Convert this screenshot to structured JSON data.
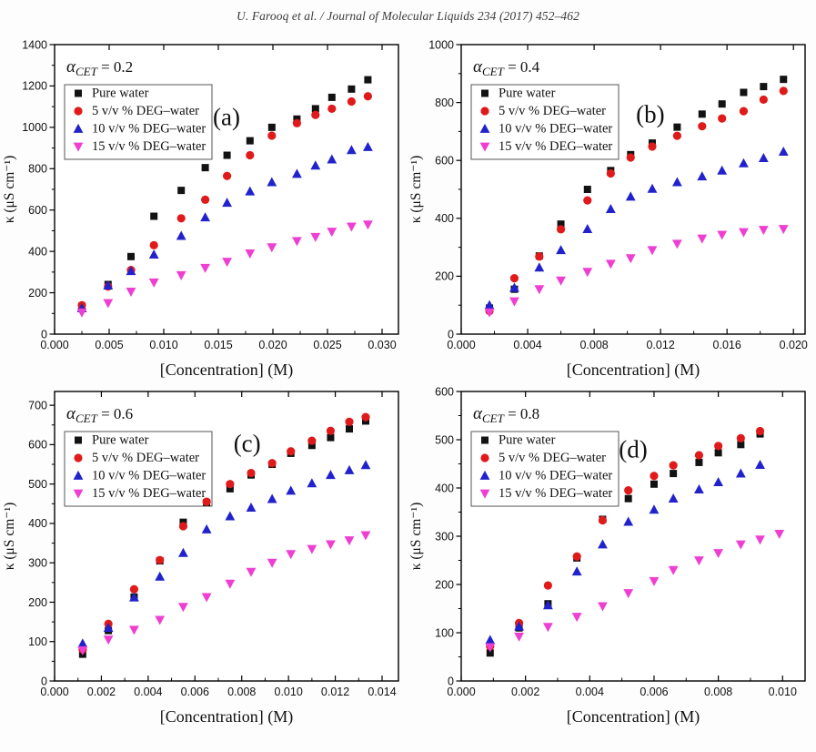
{
  "page": {
    "header": "U. Farooq et al. / Journal of Molecular Liquids 234 (2017) 452–462"
  },
  "chart_data": [
    {
      "type": "scatter",
      "panel_letter": "(a)",
      "title": {
        "symbol": "α",
        "sub": "CET",
        "rest": " = 0.2"
      },
      "xlabel": "[Concentration] (M)",
      "ylabel": "κ (μS cm⁻¹)",
      "xlim": [
        0,
        0.0315
      ],
      "ylim": [
        0,
        1400
      ],
      "xticks": [
        "0.000",
        "0.005",
        "0.010",
        "0.015",
        "0.020",
        "0.025",
        "0.030"
      ],
      "yticks": [
        "0",
        "200",
        "400",
        "600",
        "800",
        "1000",
        "1200",
        "1400"
      ],
      "legend_position": "upper-left",
      "grid": false,
      "letter_frac": [
        0.5,
        0.25
      ],
      "series": [
        {
          "name": "Pure water",
          "marker": "square",
          "color": "#121212",
          "x": [
            0.0025,
            0.0049,
            0.007,
            0.0091,
            0.0116,
            0.0138,
            0.0158,
            0.0179,
            0.0199,
            0.0222,
            0.0239,
            0.0254,
            0.0272,
            0.0287
          ],
          "y": [
            135,
            240,
            375,
            570,
            695,
            805,
            865,
            935,
            1000,
            1040,
            1090,
            1145,
            1185,
            1230
          ]
        },
        {
          "name": "5 v/v % DEG–water",
          "marker": "circle",
          "color": "#e01a1a",
          "x": [
            0.0025,
            0.0049,
            0.007,
            0.0091,
            0.0116,
            0.0138,
            0.0158,
            0.0179,
            0.0199,
            0.0222,
            0.0239,
            0.0254,
            0.0272,
            0.0287
          ],
          "y": [
            140,
            230,
            310,
            430,
            560,
            650,
            765,
            865,
            960,
            1020,
            1060,
            1090,
            1125,
            1150
          ]
        },
        {
          "name": "10 v/v % DEG–water",
          "marker": "triangle-up",
          "color": "#2222cc",
          "x": [
            0.0025,
            0.0049,
            0.007,
            0.0091,
            0.0116,
            0.0138,
            0.0158,
            0.0179,
            0.0199,
            0.0222,
            0.0239,
            0.0254,
            0.0272,
            0.0287
          ],
          "y": [
            125,
            235,
            305,
            385,
            475,
            565,
            635,
            690,
            735,
            775,
            815,
            845,
            890,
            905
          ]
        },
        {
          "name": "15 v/v % DEG–water",
          "marker": "triangle-down",
          "color": "#ee3fd2",
          "x": [
            0.0025,
            0.0049,
            0.007,
            0.0091,
            0.0116,
            0.0138,
            0.0158,
            0.0179,
            0.0199,
            0.0222,
            0.0239,
            0.0254,
            0.0272,
            0.0287
          ],
          "y": [
            105,
            150,
            205,
            250,
            285,
            320,
            350,
            390,
            420,
            450,
            470,
            495,
            520,
            530
          ]
        }
      ]
    },
    {
      "type": "scatter",
      "panel_letter": "(b)",
      "title": {
        "symbol": "α",
        "sub": "CET",
        "rest": " = 0.4"
      },
      "xlabel": "[Concentration] (M)",
      "ylabel": "κ (μS cm⁻¹)",
      "xlim": [
        0,
        0.0207
      ],
      "ylim": [
        0,
        1000
      ],
      "xticks": [
        "0.000",
        "0.004",
        "0.008",
        "0.012",
        "0.016",
        "0.020"
      ],
      "yticks": [
        "0",
        "200",
        "400",
        "600",
        "800",
        "1000"
      ],
      "legend_position": "upper-left",
      "grid": false,
      "letter_frac": [
        0.55,
        0.24
      ],
      "series": [
        {
          "name": "Pure water",
          "marker": "square",
          "color": "#121212",
          "x": [
            0.0017,
            0.0032,
            0.0047,
            0.006,
            0.0076,
            0.009,
            0.0102,
            0.0115,
            0.013,
            0.0145,
            0.0157,
            0.017,
            0.0182,
            0.0194
          ],
          "y": [
            90,
            155,
            270,
            380,
            500,
            565,
            620,
            660,
            715,
            760,
            795,
            835,
            855,
            880
          ]
        },
        {
          "name": "5 v/v % DEG–water",
          "marker": "circle",
          "color": "#e01a1a",
          "x": [
            0.0017,
            0.0032,
            0.0047,
            0.006,
            0.0076,
            0.009,
            0.0102,
            0.0115,
            0.013,
            0.0145,
            0.0157,
            0.017,
            0.0182,
            0.0194
          ],
          "y": [
            80,
            193,
            268,
            362,
            462,
            555,
            610,
            648,
            685,
            718,
            745,
            770,
            810,
            840
          ]
        },
        {
          "name": "10 v/v % DEG–water",
          "marker": "triangle-up",
          "color": "#2222cc",
          "x": [
            0.0017,
            0.0032,
            0.0047,
            0.006,
            0.0076,
            0.009,
            0.0102,
            0.0115,
            0.013,
            0.0145,
            0.0157,
            0.017,
            0.0182,
            0.0194
          ],
          "y": [
            100,
            160,
            230,
            290,
            363,
            432,
            475,
            502,
            525,
            545,
            565,
            590,
            608,
            630
          ]
        },
        {
          "name": "15 v/v % DEG–water",
          "marker": "triangle-down",
          "color": "#ee3fd2",
          "x": [
            0.0017,
            0.0032,
            0.0047,
            0.006,
            0.0076,
            0.009,
            0.0102,
            0.0115,
            0.013,
            0.0145,
            0.0157,
            0.017,
            0.0182,
            0.0194
          ],
          "y": [
            75,
            113,
            155,
            185,
            215,
            243,
            262,
            290,
            312,
            330,
            343,
            352,
            360,
            363
          ]
        }
      ]
    },
    {
      "type": "scatter",
      "panel_letter": "(c)",
      "title": {
        "symbol": "α",
        "sub": "CET",
        "rest": " = 0.6"
      },
      "xlabel": "[Concentration] (M)",
      "ylabel": "κ (μS cm⁻¹)",
      "xlim": [
        0,
        0.0147
      ],
      "ylim": [
        0,
        735
      ],
      "xticks": [
        "0.000",
        "0.002",
        "0.004",
        "0.006",
        "0.008",
        "0.010",
        "0.012",
        "0.014"
      ],
      "yticks": [
        "0",
        "100",
        "200",
        "300",
        "400",
        "500",
        "600",
        "700"
      ],
      "legend_position": "upper-left",
      "grid": false,
      "letter_frac": [
        0.56,
        0.18
      ],
      "series": [
        {
          "name": "Pure water",
          "marker": "square",
          "color": "#121212",
          "x": [
            0.0012,
            0.0023,
            0.0034,
            0.0045,
            0.0055,
            0.0065,
            0.0075,
            0.0084,
            0.0093,
            0.0101,
            0.011,
            0.0118,
            0.0126,
            0.0133
          ],
          "y": [
            68,
            128,
            213,
            305,
            403,
            453,
            488,
            523,
            550,
            578,
            598,
            618,
            640,
            660
          ]
        },
        {
          "name": "5 v/v % DEG–water",
          "marker": "circle",
          "color": "#e01a1a",
          "x": [
            0.0012,
            0.0023,
            0.0034,
            0.0045,
            0.0055,
            0.0065,
            0.0075,
            0.0084,
            0.0093,
            0.0101,
            0.011,
            0.0118,
            0.0126,
            0.0133
          ],
          "y": [
            80,
            145,
            233,
            307,
            393,
            455,
            500,
            528,
            553,
            583,
            610,
            635,
            658,
            670
          ]
        },
        {
          "name": "10 v/v % DEG–water",
          "marker": "triangle-up",
          "color": "#2222cc",
          "x": [
            0.0012,
            0.0023,
            0.0034,
            0.0045,
            0.0055,
            0.0065,
            0.0075,
            0.0084,
            0.0093,
            0.0101,
            0.011,
            0.0118,
            0.0126,
            0.0133
          ],
          "y": [
            95,
            135,
            212,
            265,
            325,
            385,
            418,
            440,
            462,
            483,
            502,
            523,
            535,
            548
          ]
        },
        {
          "name": "15 v/v % DEG–water",
          "marker": "triangle-down",
          "color": "#ee3fd2",
          "x": [
            0.0012,
            0.0023,
            0.0034,
            0.0045,
            0.0055,
            0.0065,
            0.0075,
            0.0084,
            0.0093,
            0.0101,
            0.011,
            0.0118,
            0.0126,
            0.0133
          ],
          "y": [
            78,
            105,
            130,
            155,
            188,
            213,
            247,
            277,
            300,
            322,
            335,
            347,
            357,
            370
          ]
        }
      ]
    },
    {
      "type": "scatter",
      "panel_letter": "(d)",
      "title": {
        "symbol": "α",
        "sub": "CET",
        "rest": " = 0.8"
      },
      "xlabel": "[Concentration] (M)",
      "ylabel": "κ (μS cm⁻¹)",
      "xlim": [
        0,
        0.0107
      ],
      "ylim": [
        0,
        600
      ],
      "xticks": [
        "0.000",
        "0.002",
        "0.004",
        "0.006",
        "0.008",
        "0.010"
      ],
      "yticks": [
        "0",
        "100",
        "200",
        "300",
        "400",
        "500",
        "600"
      ],
      "legend_position": "upper-left",
      "grid": false,
      "letter_frac": [
        0.5,
        0.2
      ],
      "series": [
        {
          "name": "Pure water",
          "marker": "square",
          "color": "#121212",
          "x": [
            0.0009,
            0.0018,
            0.0027,
            0.0036,
            0.0044,
            0.0052,
            0.006,
            0.0066,
            0.0074,
            0.008,
            0.0087,
            0.0093
          ],
          "y": [
            58,
            110,
            160,
            255,
            335,
            378,
            408,
            430,
            453,
            473,
            490,
            512
          ]
        },
        {
          "name": "5 v/v % DEG–water",
          "marker": "circle",
          "color": "#e01a1a",
          "x": [
            0.0009,
            0.0018,
            0.0027,
            0.0036,
            0.0044,
            0.0052,
            0.006,
            0.0066,
            0.0074,
            0.008,
            0.0087,
            0.0093
          ],
          "y": [
            72,
            120,
            198,
            258,
            333,
            395,
            425,
            447,
            468,
            487,
            503,
            518
          ]
        },
        {
          "name": "10 v/v % DEG–water",
          "marker": "triangle-up",
          "color": "#2222cc",
          "x": [
            0.0009,
            0.0018,
            0.0027,
            0.0036,
            0.0044,
            0.0052,
            0.006,
            0.0066,
            0.0074,
            0.008,
            0.0087,
            0.0093
          ],
          "y": [
            85,
            113,
            157,
            227,
            283,
            330,
            355,
            378,
            397,
            412,
            430,
            448
          ]
        },
        {
          "name": "15 v/v % DEG–water",
          "marker": "triangle-down",
          "color": "#ee3fd2",
          "x": [
            0.0009,
            0.0018,
            0.0027,
            0.0036,
            0.0044,
            0.0052,
            0.006,
            0.0066,
            0.0074,
            0.008,
            0.0087,
            0.0093,
            0.0099
          ],
          "y": [
            70,
            92,
            112,
            133,
            155,
            182,
            207,
            230,
            250,
            265,
            283,
            293,
            305
          ]
        }
      ]
    }
  ]
}
